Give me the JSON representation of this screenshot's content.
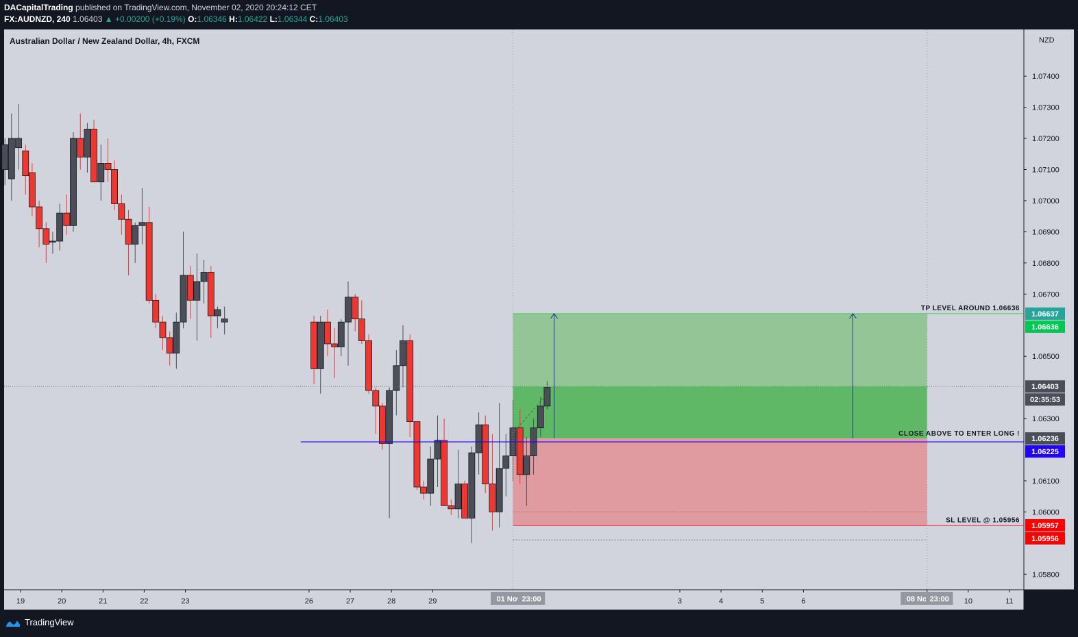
{
  "header": {
    "author": "DACapitalTrading",
    "published_text": "published on TradingView.com, November 02, 2020 20:24:12 CET",
    "symbol": "FX:AUDNZD, 240",
    "last": "1.06403",
    "change_arrow": "▲",
    "change": "+0.00200 (+0.19%)",
    "o_label": "O:",
    "o_value": "1.06346",
    "h_label": "H:",
    "h_value": "1.06422",
    "l_label": "L:",
    "l_value": "1.06344",
    "c_label": "C:",
    "c_value": "1.06403"
  },
  "chart_data": {
    "type": "candlestick",
    "title": "Australian Dollar / New Zealand Dollar, 4h, FXCM",
    "currency": "NZD",
    "ylim": [
      1.0575,
      1.0755
    ],
    "y_ticks": [
      "1.07400",
      "1.07300",
      "1.07200",
      "1.07100",
      "1.07000",
      "1.06900",
      "1.06800",
      "1.06700",
      "1.06500",
      "1.06300",
      "1.06100",
      "1.06000",
      "1.05800"
    ],
    "x_ticks": [
      "19",
      "20",
      "21",
      "22",
      "23",
      "26",
      "27",
      "28",
      "29",
      "3",
      "4",
      "5",
      "6",
      "9",
      "10",
      "11"
    ],
    "x_tick_days": [
      19,
      20,
      21,
      22,
      23,
      26,
      27,
      28,
      29,
      35,
      36,
      37,
      38,
      41,
      42,
      43
    ],
    "x_start_day": 18.6,
    "x_end_day": 43.35,
    "colors": {
      "up": "#4b4e57",
      "down": "#f0372f",
      "bg": "#d1d4dc"
    },
    "candles": [
      [
        18.62,
        1.071,
        1.072,
        1.0705,
        1.0718
      ],
      [
        18.78,
        1.0707,
        1.0728,
        1.07,
        1.072
      ],
      [
        18.95,
        1.0717,
        1.0731,
        1.071,
        1.072
      ],
      [
        19.12,
        1.0716,
        1.0718,
        1.0702,
        1.0708
      ],
      [
        19.28,
        1.0709,
        1.0712,
        1.0695,
        1.0698
      ],
      [
        19.45,
        1.0698,
        1.07,
        1.0685,
        1.0691
      ],
      [
        19.62,
        1.0691,
        1.0693,
        1.068,
        1.0686
      ],
      [
        19.78,
        1.0687,
        1.069,
        1.0683,
        1.0687
      ],
      [
        19.95,
        1.0687,
        1.0699,
        1.0684,
        1.0696
      ],
      [
        20.12,
        1.0696,
        1.0702,
        1.0689,
        1.0692
      ],
      [
        20.28,
        1.0692,
        1.0722,
        1.069,
        1.072
      ],
      [
        20.45,
        1.072,
        1.0728,
        1.071,
        1.0714
      ],
      [
        20.62,
        1.0714,
        1.0725,
        1.0709,
        1.0723
      ],
      [
        20.78,
        1.0723,
        1.0726,
        1.0706,
        1.0706
      ],
      [
        20.95,
        1.0706,
        1.0718,
        1.07,
        1.0712
      ],
      [
        21.12,
        1.0712,
        1.072,
        1.0706,
        1.071
      ],
      [
        21.28,
        1.071,
        1.0713,
        1.0697,
        1.0699
      ],
      [
        21.45,
        1.0699,
        1.0702,
        1.0689,
        1.0694
      ],
      [
        21.62,
        1.0694,
        1.0697,
        1.0676,
        1.0686
      ],
      [
        21.78,
        1.0686,
        1.0693,
        1.068,
        1.0692
      ],
      [
        21.95,
        1.0692,
        1.0704,
        1.0686,
        1.0693
      ],
      [
        22.12,
        1.0693,
        1.0698,
        1.0667,
        1.0668
      ],
      [
        22.28,
        1.0668,
        1.067,
        1.0659,
        1.0661
      ],
      [
        22.45,
        1.0661,
        1.0663,
        1.0652,
        1.0656
      ],
      [
        22.62,
        1.0656,
        1.0658,
        1.0647,
        1.0651
      ],
      [
        22.78,
        1.0651,
        1.0664,
        1.0646,
        1.0661
      ],
      [
        22.95,
        1.0661,
        1.069,
        1.0659,
        1.0676
      ],
      [
        23.12,
        1.0676,
        1.0679,
        1.0662,
        1.0668
      ],
      [
        23.28,
        1.0668,
        1.0683,
        1.0655,
        1.0674
      ],
      [
        23.45,
        1.0674,
        1.0681,
        1.0667,
        1.0677
      ],
      [
        23.62,
        1.0677,
        1.0679,
        1.0656,
        1.0663
      ],
      [
        23.78,
        1.0663,
        1.0666,
        1.0659,
        1.0665
      ],
      [
        23.95,
        1.0661,
        1.0666,
        1.0657,
        1.0662
      ],
      [
        26.12,
        1.0661,
        1.0663,
        1.0641,
        1.0646
      ],
      [
        26.28,
        1.0646,
        1.0663,
        1.0638,
        1.0661
      ],
      [
        26.45,
        1.0661,
        1.0665,
        1.065,
        1.0654
      ],
      [
        26.62,
        1.0654,
        1.0659,
        1.0643,
        1.0653
      ],
      [
        26.78,
        1.0653,
        1.0662,
        1.065,
        1.0661
      ],
      [
        26.95,
        1.0661,
        1.0674,
        1.0647,
        1.0669
      ],
      [
        27.12,
        1.0669,
        1.067,
        1.0658,
        1.0662
      ],
      [
        27.28,
        1.0662,
        1.0668,
        1.0654,
        1.0655
      ],
      [
        27.45,
        1.0655,
        1.0657,
        1.0638,
        1.0639
      ],
      [
        27.62,
        1.0639,
        1.064,
        1.0625,
        1.0634
      ],
      [
        27.78,
        1.0634,
        1.0635,
        1.062,
        1.0622
      ],
      [
        27.95,
        1.0622,
        1.064,
        1.0598,
        1.0639
      ],
      [
        28.12,
        1.0639,
        1.0652,
        1.0631,
        1.0647
      ],
      [
        28.28,
        1.0647,
        1.066,
        1.064,
        1.0655
      ],
      [
        28.45,
        1.0655,
        1.0657,
        1.0624,
        1.0629
      ],
      [
        28.62,
        1.0629,
        1.0629,
        1.0607,
        1.0608
      ],
      [
        28.78,
        1.0608,
        1.061,
        1.0604,
        1.0606
      ],
      [
        28.95,
        1.0606,
        1.0621,
        1.0602,
        1.0617
      ],
      [
        29.12,
        1.0617,
        1.0631,
        1.0608,
        1.0623
      ],
      [
        29.28,
        1.0623,
        1.063,
        1.0602,
        1.0602
      ],
      [
        29.45,
        1.0602,
        1.0604,
        1.0599,
        1.0601
      ],
      [
        29.62,
        1.0601,
        1.062,
        1.0598,
        1.0609
      ],
      [
        29.78,
        1.0609,
        1.061,
        1.0598,
        1.0598
      ],
      [
        29.95,
        1.0598,
        1.0621,
        1.059,
        1.0619
      ],
      [
        30.12,
        1.0619,
        1.0632,
        1.0612,
        1.0628
      ],
      [
        30.28,
        1.0628,
        1.0631,
        1.0606,
        1.0609
      ],
      [
        30.45,
        1.0609,
        1.0625,
        1.0594,
        1.06
      ],
      [
        30.62,
        1.06,
        1.0635,
        1.0595,
        1.0614
      ],
      [
        30.78,
        1.0614,
        1.0625,
        1.0605,
        1.0618
      ],
      [
        30.95,
        1.0618,
        1.0636,
        1.061,
        1.0627
      ],
      [
        31.12,
        1.0627,
        1.0633,
        1.0609,
        1.0612
      ],
      [
        31.28,
        1.0612,
        1.0624,
        1.0602,
        1.0618
      ],
      [
        31.45,
        1.0618,
        1.063,
        1.0612,
        1.0627
      ],
      [
        31.62,
        1.0627,
        1.0637,
        1.0624,
        1.0634
      ],
      [
        31.78,
        1.0634,
        1.0642,
        1.0633,
        1.064
      ]
    ],
    "position": {
      "entry": "1.06236",
      "entry_value": 1.06236,
      "tp": "1.06637",
      "tp_value": 1.06637,
      "sl": "1.05956",
      "sl_value": 1.05956,
      "start_day": 30.95,
      "end_day": 41.0,
      "tp_text": "TP LEVEL AROUND 1.06636",
      "entry_text": "CLOSE ABOVE TO ENTER LONG !",
      "sl_text": "SL LEVEL @ 1.05956"
    },
    "blue_line": {
      "value": 1.06225,
      "start_day": 25.8
    },
    "price_labels": [
      {
        "text": "1.06637",
        "value": 1.06637,
        "bg": "#26a69a"
      },
      {
        "text": "1.06636",
        "value": 1.06636,
        "bg": "#00c853"
      },
      {
        "text": "1.06403",
        "value": 1.06403,
        "bg": "#4b4e57"
      },
      {
        "text": "02:35:53",
        "value": 1.06366,
        "bg": "#4b4e57"
      },
      {
        "text": "1.06236",
        "value": 1.06236,
        "bg": "#4b4e57"
      },
      {
        "text": "1.06225",
        "value": 1.06225,
        "bg": "#2104f5"
      },
      {
        "text": "1.05957",
        "value": 1.05957,
        "bg": "#ff0000"
      },
      {
        "text": "1.05956",
        "value": 1.05956,
        "bg": "#ff0000"
      }
    ],
    "date_labels": [
      {
        "text": "01 Nov '20",
        "day": 31.0
      },
      {
        "text": "23:00",
        "day": 31.4
      },
      {
        "text": "08 Nov '20",
        "day": 40.95
      },
      {
        "text": "23:00",
        "day": 41.3
      }
    ],
    "nov_label": "Nov",
    "nov_day": 31.0,
    "last_price": 1.06403
  },
  "footer": {
    "brand": "TradingView"
  }
}
